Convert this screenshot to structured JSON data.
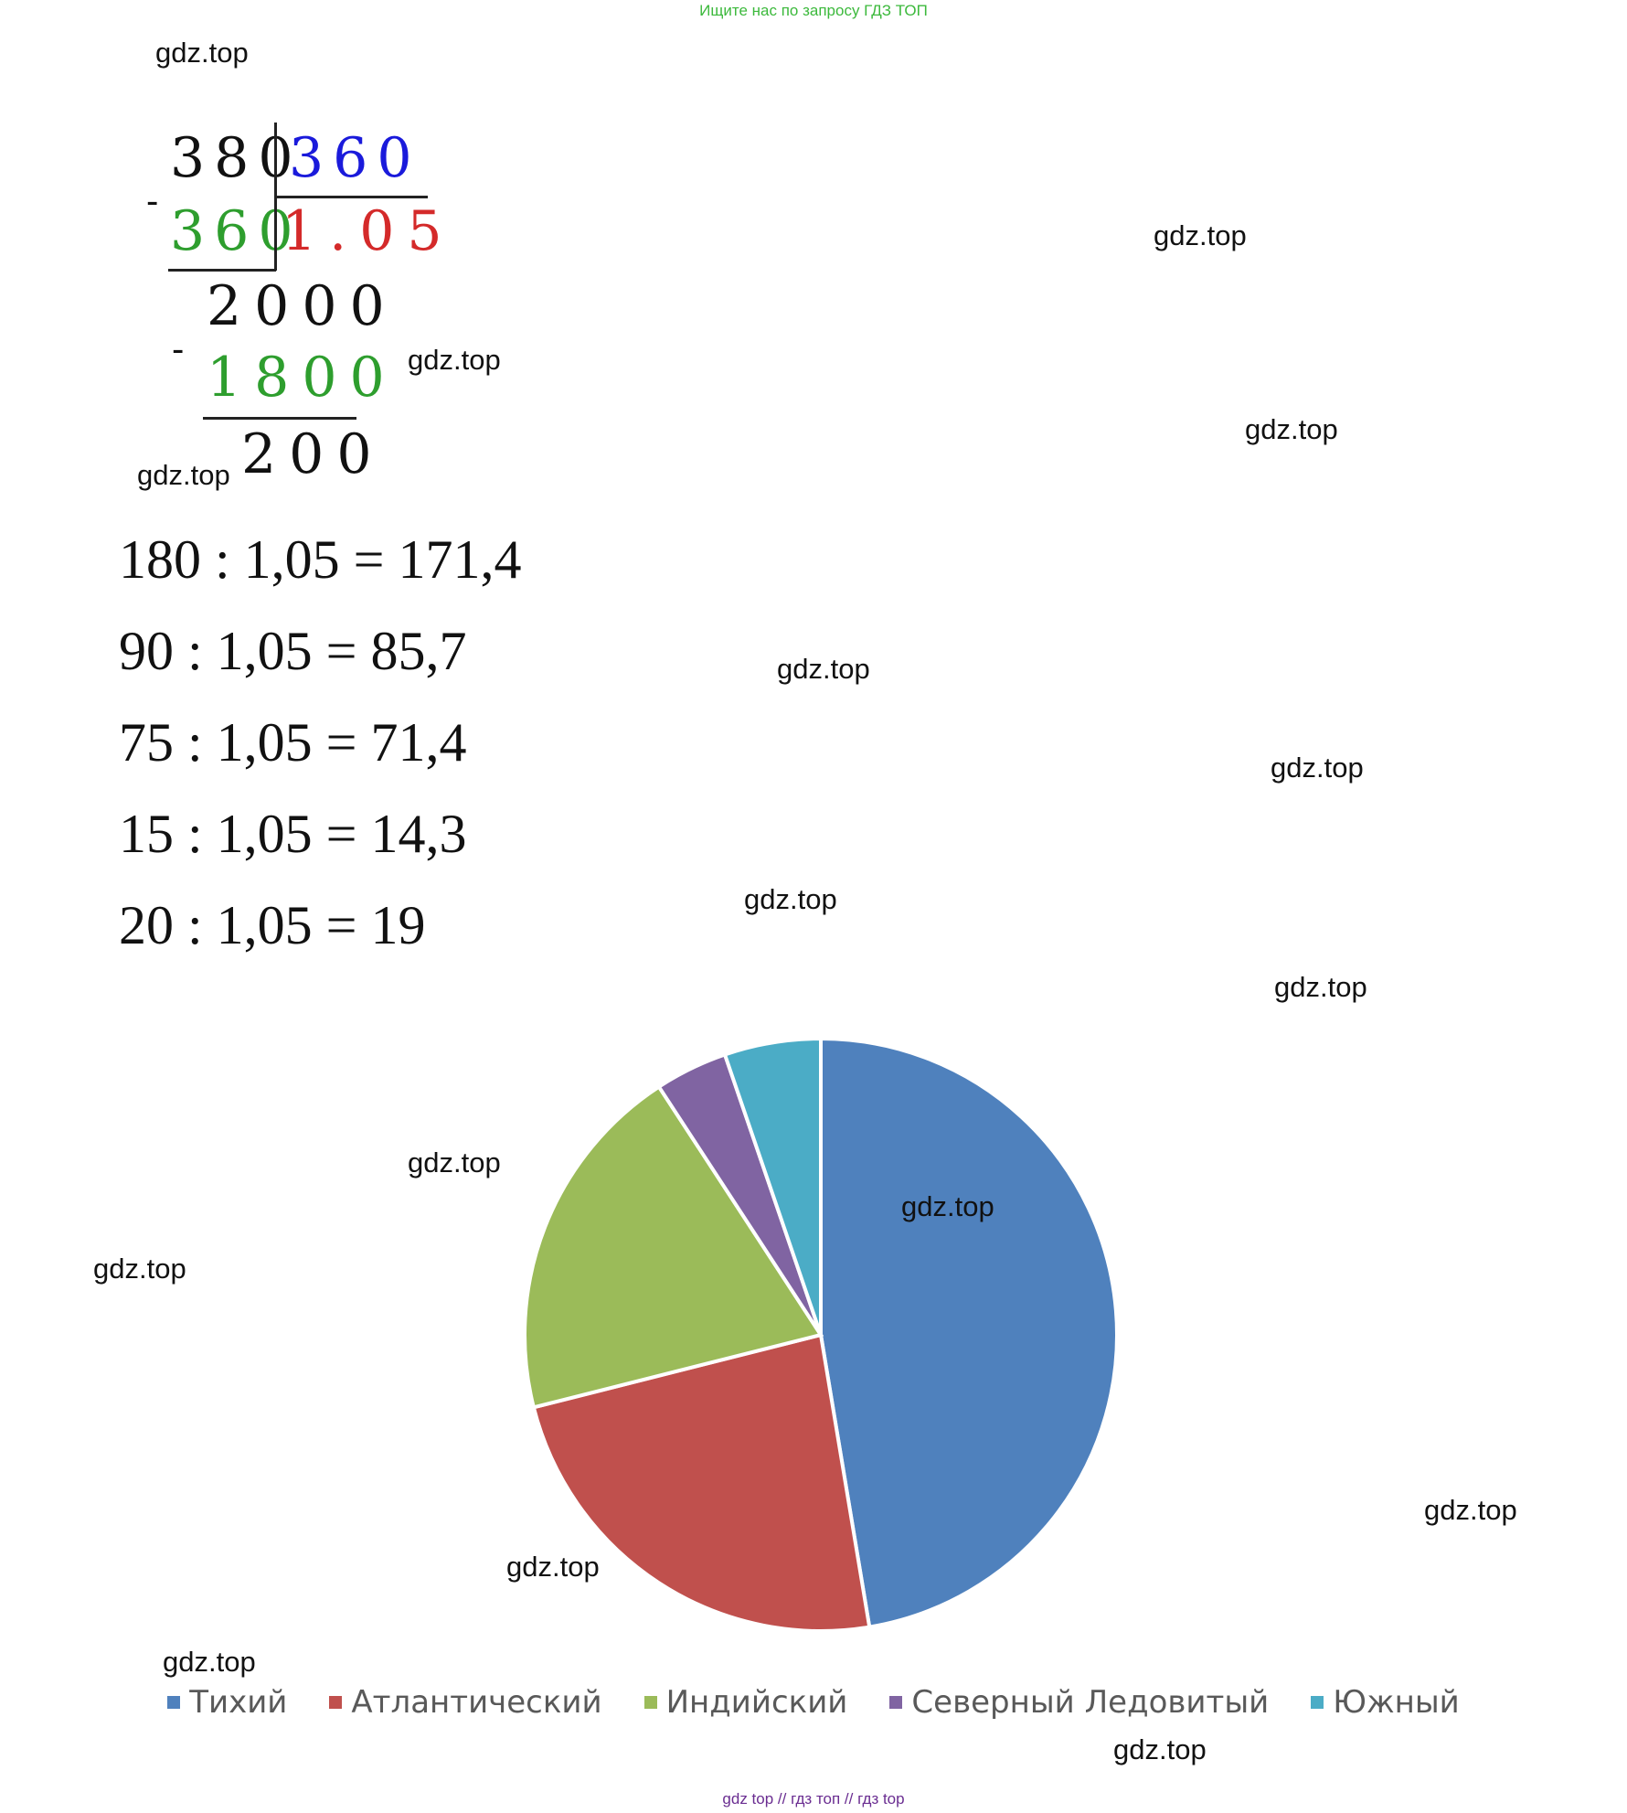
{
  "banner_top": "Ищите нас по запросу ГДЗ ТОП",
  "banner_bottom": "gdz top  //  гдз топ  //  гдз top",
  "watermark": "gdz.top",
  "long_division": {
    "dividend": "380",
    "divisor": "360",
    "subtrahend": "360",
    "quotient": "1.05",
    "remainder1": "2000",
    "subtrahend2": "1800",
    "remainder2": "200",
    "minus": "-"
  },
  "equations": [
    "180 : 1,05 = 171,4",
    "90 : 1,05 = 85,7",
    "75 : 1,05 = 71,4",
    "15 : 1,05 = 14,3",
    "20 : 1,05 = 19"
  ],
  "colors": {
    "dividend": "#111111",
    "divisor": "#1a1adb",
    "subtrahend": "#2e9e2e",
    "quotient": "#d42a2a"
  },
  "chart_data": {
    "type": "pie",
    "title": "",
    "start_angle_deg": 0,
    "direction": "clockwise",
    "legend_position": "bottom",
    "series": [
      {
        "name": "Тихий",
        "value": 171.4,
        "color": "#4f81bd"
      },
      {
        "name": "Атлантический",
        "value": 85.7,
        "color": "#c0504d"
      },
      {
        "name": "Индийский",
        "value": 71.4,
        "color": "#9bbb59"
      },
      {
        "name": "Северный Ледовитый",
        "value": 14.3,
        "color": "#8064a2"
      },
      {
        "name": "Южный",
        "value": 19,
        "color": "#4bacc6"
      }
    ]
  }
}
